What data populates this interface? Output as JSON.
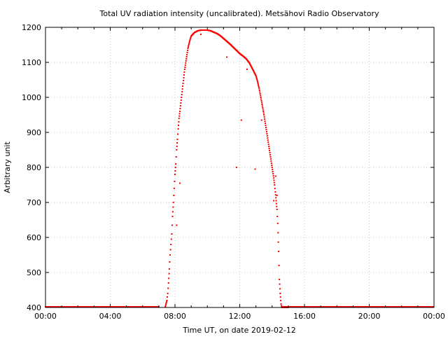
{
  "chart_data": {
    "type": "scatter",
    "title": "Total UV radiation intensity (uncalibrated). Metsähovi Radio Observatory",
    "xlabel": "Time UT, on date 2019-02-12",
    "ylabel": "Arbitrary unit",
    "xlim": [
      "00:00",
      "24:00"
    ],
    "ylim": [
      400,
      1200
    ],
    "x_ticks": [
      "00:00",
      "04:00",
      "08:00",
      "12:00",
      "16:00",
      "20:00",
      "00:00"
    ],
    "y_ticks": [
      400,
      500,
      600,
      700,
      800,
      900,
      1000,
      1100,
      1200
    ],
    "grid": true,
    "series_color": "#ff0000",
    "series": [
      {
        "x_hours": [
          0,
          1,
          2,
          3,
          4,
          5,
          6,
          7,
          7.4,
          7.5,
          7.55,
          7.6,
          7.65,
          7.7,
          7.75,
          7.8,
          7.85,
          7.9,
          7.95,
          8.0,
          8.05,
          8.1,
          8.15,
          8.2,
          8.25,
          8.3,
          8.4,
          8.5,
          8.6,
          8.7,
          8.8,
          8.9,
          9.0,
          9.2,
          9.4,
          9.6,
          9.8,
          10.0,
          10.2,
          10.4,
          10.6,
          10.8,
          11.0,
          11.2,
          11.4,
          11.6,
          11.8,
          12.0,
          12.2,
          12.4,
          12.6,
          12.8,
          13.0,
          13.1,
          13.2,
          13.3,
          13.4,
          13.5,
          13.6,
          13.7,
          13.8,
          13.9,
          14.0,
          14.1,
          14.15,
          14.2,
          14.25,
          14.3,
          14.35,
          14.4,
          14.45,
          14.5,
          14.55,
          14.6,
          15,
          16,
          17,
          18,
          19,
          20,
          21,
          22,
          23,
          24,
          8.1,
          8.3,
          9.6,
          11.2,
          11.8,
          12.1,
          12.45,
          12.95,
          13.35,
          14.3,
          14.1,
          14.22
        ],
        "y": [
          400,
          400,
          400,
          400,
          400,
          400,
          400,
          400,
          402,
          420,
          440,
          470,
          510,
          550,
          580,
          610,
          660,
          700,
          740,
          780,
          810,
          850,
          880,
          910,
          940,
          960,
          1000,
          1040,
          1080,
          1110,
          1140,
          1160,
          1175,
          1185,
          1190,
          1192,
          1192,
          1192,
          1190,
          1186,
          1182,
          1176,
          1168,
          1160,
          1152,
          1143,
          1134,
          1125,
          1118,
          1110,
          1098,
          1080,
          1062,
          1045,
          1025,
          1000,
          975,
          950,
          920,
          890,
          860,
          830,
          800,
          770,
          750,
          730,
          705,
          680,
          640,
          560,
          480,
          440,
          410,
          400,
          400,
          400,
          400,
          400,
          400,
          400,
          400,
          400,
          400,
          400,
          635,
          755,
          1180,
          1115,
          800,
          935,
          1080,
          795,
          935,
          720,
          705,
          775
        ]
      }
    ]
  }
}
